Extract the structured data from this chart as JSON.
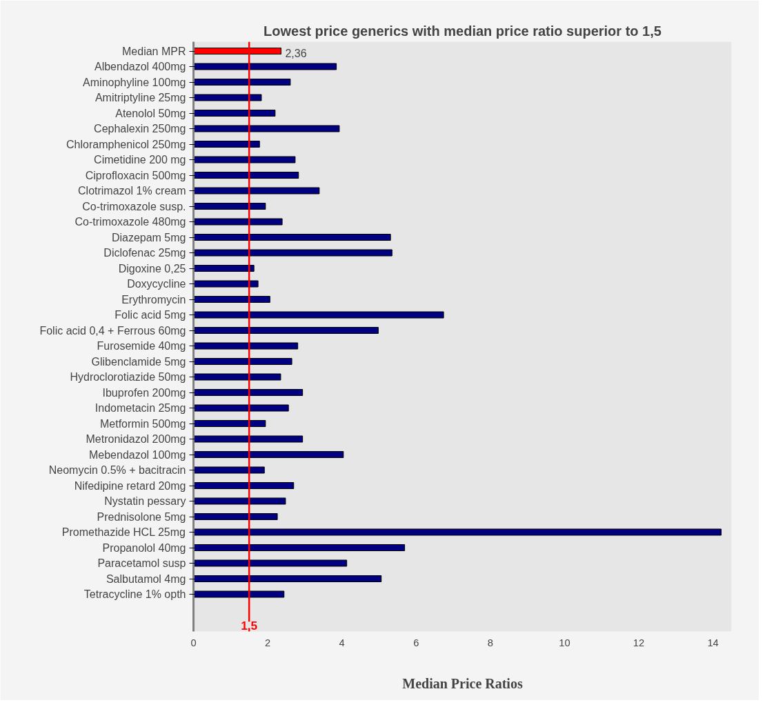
{
  "chart_data": {
    "type": "bar",
    "orientation": "horizontal",
    "title": "Lowest price generics with median price ratio superior to 1,5",
    "xlabel": "Median Price Ratios",
    "categories": [
      "Median MPR",
      "Albendazol 400mg",
      "Aminophyline 100mg",
      "Amitriptyline 25mg",
      "Atenolol 50mg",
      "Cephalexin 250mg",
      "Chloramphenicol 250mg",
      "Cimetidine 200 mg",
      "Ciprofloxacin 500mg",
      "Clotrimazol 1% cream",
      "Co-trimoxazole susp.",
      "Co-trimoxazole 480mg",
      "Diazepam 5mg",
      "Diclofenac 25mg",
      "Digoxine 0,25",
      "Doxycycline",
      "Erythromycin",
      "Folic acid 5mg",
      "Folic acid 0,4 + Ferrous 60mg",
      "Furosemide 40mg",
      "Glibenclamide 5mg",
      "Hydroclorotiazide 50mg",
      "Ibuprofen 200mg",
      "Indometacin 25mg",
      "Metformin 500mg",
      "Metronidazol 200mg",
      "Mebendazol 100mg",
      "Neomycin 0.5% + bacitracin",
      "Nifedipine retard 20mg",
      "Nystatin pessary",
      "Prednisolone 5mg",
      "Promethazide HCL 25mg",
      "Propanolol 40mg",
      "Paracetamol susp",
      "Salbutamol 4mg",
      "Tetracycline 1% opth"
    ],
    "values": [
      2.36,
      3.85,
      2.61,
      1.83,
      2.2,
      3.93,
      1.78,
      2.74,
      2.83,
      3.39,
      1.94,
      2.39,
      5.31,
      5.35,
      1.63,
      1.74,
      2.06,
      6.74,
      4.98,
      2.81,
      2.65,
      2.35,
      2.94,
      2.56,
      1.94,
      2.94,
      4.04,
      1.91,
      2.7,
      2.48,
      2.26,
      14.22,
      5.69,
      4.13,
      5.06,
      2.44
    ],
    "colors": [
      "#ff0000",
      "#000080",
      "#000080",
      "#000080",
      "#000080",
      "#000080",
      "#000080",
      "#000080",
      "#000080",
      "#000080",
      "#000080",
      "#000080",
      "#000080",
      "#000080",
      "#000080",
      "#000080",
      "#000080",
      "#000080",
      "#000080",
      "#000080",
      "#000080",
      "#000080",
      "#000080",
      "#000080",
      "#000080",
      "#000080",
      "#000080",
      "#000080",
      "#000080",
      "#000080",
      "#000080",
      "#000080",
      "#000080",
      "#000080",
      "#000080",
      "#000080"
    ],
    "value_labels": [
      "2,36",
      null,
      null,
      null,
      null,
      null,
      null,
      null,
      null,
      null,
      null,
      null,
      null,
      null,
      null,
      null,
      null,
      null,
      null,
      null,
      null,
      null,
      null,
      null,
      null,
      null,
      null,
      null,
      null,
      null,
      null,
      null,
      null,
      null,
      null,
      null
    ],
    "xlim": [
      0,
      14.5
    ],
    "xticks": [
      0,
      2,
      4,
      6,
      8,
      10,
      12,
      14
    ],
    "ref_lines": [
      {
        "axis": "x",
        "value": 1.5,
        "label": "1,5",
        "color": "#ff0000"
      }
    ]
  }
}
